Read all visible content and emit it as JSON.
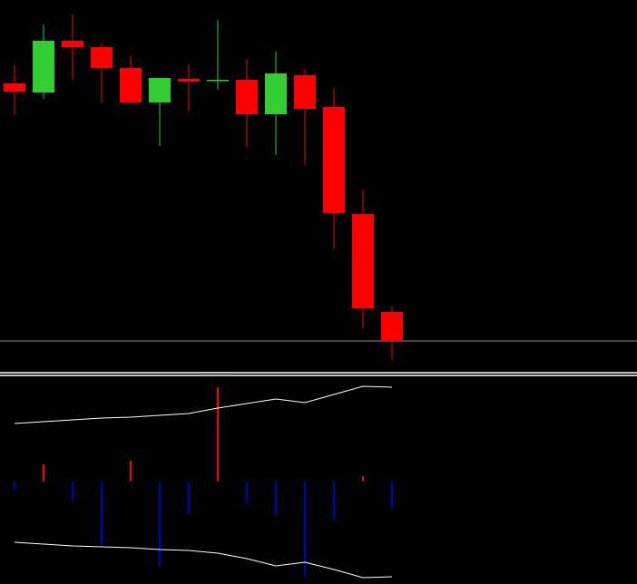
{
  "chart_data": [
    {
      "type": "candlestick",
      "categories": [
        null,
        null,
        null,
        null,
        null,
        null,
        null,
        null,
        null,
        null,
        null,
        null,
        null,
        null
      ],
      "open": [
        318,
        308,
        365,
        358,
        335,
        297,
        323,
        321,
        322,
        284,
        327,
        292,
        174,
        66
      ],
      "high": [
        338,
        383,
        394,
        362,
        349,
        324,
        339,
        388,
        345,
        353,
        334,
        313,
        201,
        72
      ],
      "low": [
        283,
        301,
        322,
        296,
        296,
        249,
        287,
        311,
        247,
        239,
        229,
        135,
        48,
        13
      ],
      "close": [
        309,
        365,
        358,
        335,
        297,
        324,
        320,
        322,
        284,
        329,
        290,
        175,
        70,
        34
      ],
      "up_color": "#32cd32",
      "down_color": "#ff0000",
      "ylim": [
        0,
        410
      ],
      "level": 34,
      "level_color": "#8090a0"
    },
    {
      "type": "histogram-bands",
      "categories": [
        null,
        null,
        null,
        null,
        null,
        null,
        null,
        null,
        null,
        null,
        null,
        null,
        null,
        null
      ],
      "values": [
        -10,
        19,
        -22,
        -70,
        23,
        -94,
        -35,
        104,
        -24,
        -38,
        -105,
        -42,
        6,
        -30
      ],
      "positive_color": "#ff0000",
      "negative_color": "#0000cd",
      "upper": [
        64,
        66,
        68,
        70,
        71,
        73,
        75,
        81,
        86,
        91,
        87,
        96,
        105,
        104
      ],
      "lower": [
        -67,
        -69,
        -71,
        -72,
        -73,
        -75,
        -76,
        -79,
        -85,
        -93,
        -89,
        -97,
        -106,
        -105
      ],
      "band_color": "#ffffff",
      "ylim": [
        -113,
        117
      ]
    }
  ]
}
